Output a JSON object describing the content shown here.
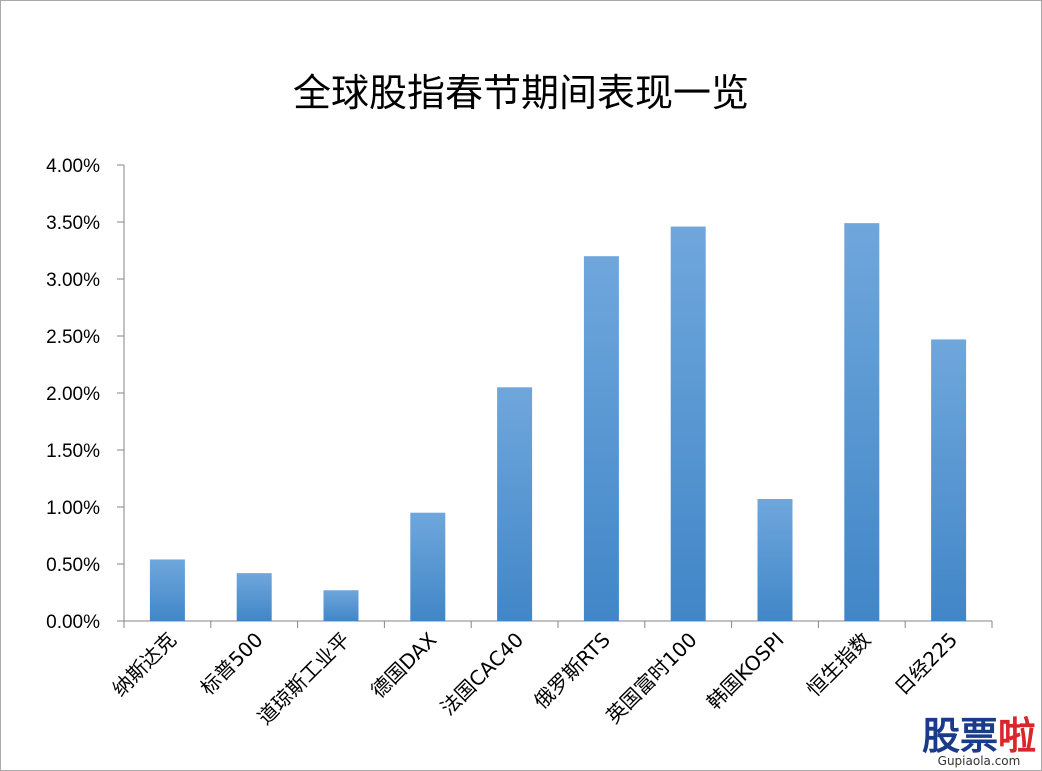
{
  "chart_data": {
    "type": "bar",
    "title": "全球股指春节期间表现一览",
    "categories": [
      "纳斯达克",
      "标普500",
      "道琼斯工业平",
      "德国DAX",
      "法国CAC40",
      "俄罗斯RTS",
      "英国富时100",
      "韩国KOSPI",
      "恒生指数",
      "日经225"
    ],
    "values": [
      0.54,
      0.42,
      0.27,
      0.95,
      2.05,
      3.2,
      3.46,
      1.07,
      3.49,
      2.47
    ],
    "value_unit": "%",
    "yticks": [
      "0.00%",
      "0.50%",
      "1.00%",
      "1.50%",
      "2.00%",
      "2.50%",
      "3.00%",
      "3.50%",
      "4.00%"
    ],
    "ylim": [
      0,
      4
    ],
    "xlabel": "",
    "ylabel": "",
    "grid": false,
    "legend": "none",
    "bar_color_top": "#6fa7dc",
    "bar_color_bottom": "#4186c8"
  },
  "watermark": {
    "logo_part1": "股票",
    "logo_part2": "啦",
    "url": "Gupiaola.com"
  }
}
